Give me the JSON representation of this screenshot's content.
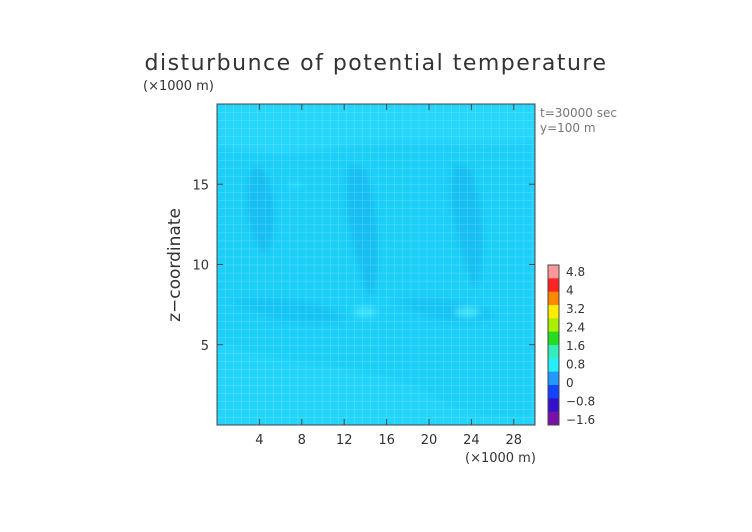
{
  "chart_data": {
    "type": "heatmap",
    "title": "disturbunce of potential temperature",
    "ylabel": "z−coordinate",
    "xunit": "(×1000 m)",
    "yunit": "(×1000 m)",
    "info": [
      "t=30000 sec",
      "y=100 m"
    ],
    "xlim": [
      0,
      30
    ],
    "ylim": [
      0,
      20
    ],
    "xticks": [
      4,
      8,
      12,
      16,
      20,
      24,
      28
    ],
    "yticks": [
      5,
      10,
      15
    ],
    "colorbar": {
      "labels": [
        "4.8",
        "4",
        "3.2",
        "2.4",
        "1.6",
        "0.8",
        "0",
        "−0.8",
        "−1.6"
      ],
      "colors": [
        "#ff9999",
        "#ff2222",
        "#ff8800",
        "#ffee00",
        "#aaee00",
        "#22dd22",
        "#33eebb",
        "#22eeff",
        "#2299ff",
        "#1144ff",
        "#3311cc",
        "#7711aa"
      ]
    },
    "background_color": "#1ccff8"
  }
}
